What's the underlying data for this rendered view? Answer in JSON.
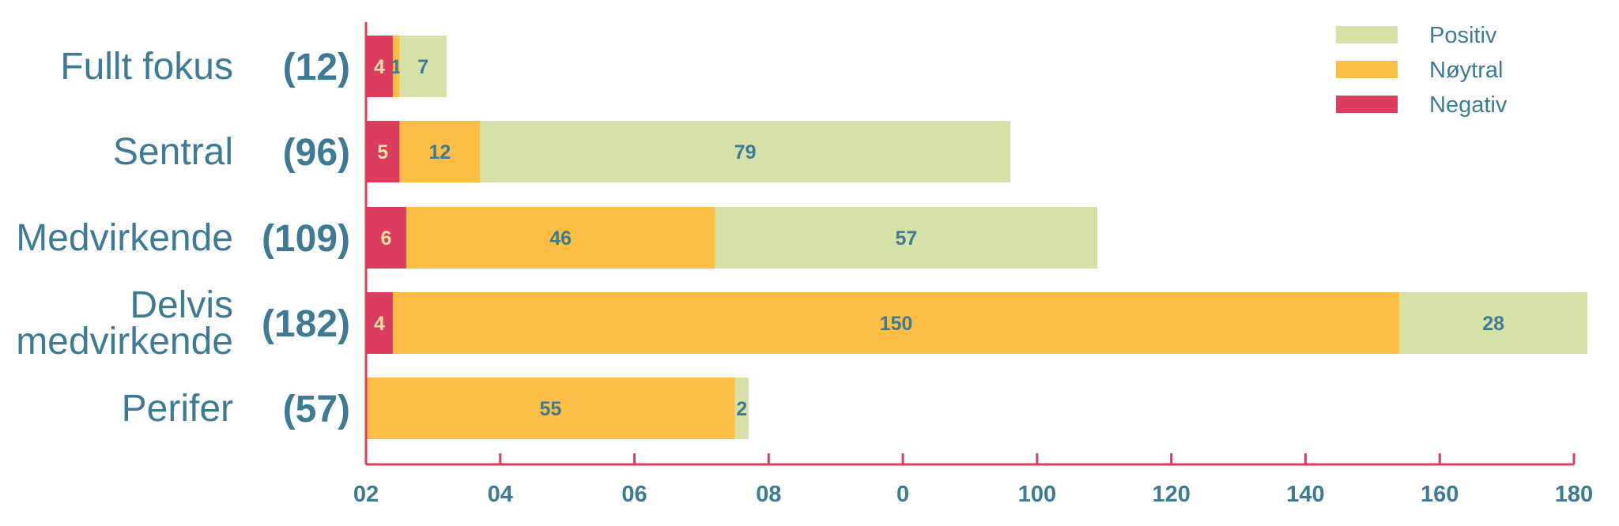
{
  "chart_data": {
    "type": "bar",
    "orientation": "horizontal",
    "stacked": true,
    "title": "",
    "xlabel": "",
    "ylabel": "",
    "xlim": [
      0,
      180
    ],
    "grid": false,
    "legend_position": "top-right",
    "categories": [
      {
        "lines": [
          "Fullt fokus"
        ],
        "count_label": "(12)"
      },
      {
        "lines": [
          "Sentral"
        ],
        "count_label": "(96)"
      },
      {
        "lines": [
          "Medvirkende"
        ],
        "count_label": "(109)"
      },
      {
        "lines": [
          "Delvis",
          "medvirkende"
        ],
        "count_label": "(182)"
      },
      {
        "lines": [
          "Perifer"
        ],
        "count_label": "(57)"
      }
    ],
    "series": [
      {
        "name": "Negativ",
        "color": "#dc3d5e",
        "label_color": "#f3e5a6",
        "values": [
          4,
          5,
          6,
          4,
          0
        ]
      },
      {
        "name": "Nøytral",
        "color": "#fcbe44",
        "label_color": "#3d7a93",
        "values": [
          1,
          12,
          46,
          150,
          55
        ]
      },
      {
        "name": "Positiv",
        "color": "#d6e1a8",
        "label_color": "#3d7a93",
        "values": [
          7,
          79,
          57,
          28,
          2
        ]
      }
    ],
    "bar_value_labels": [
      [
        "4",
        "5",
        "6",
        "4",
        ""
      ],
      [
        "1",
        "12",
        "46",
        "150",
        "55"
      ],
      [
        "7",
        "79",
        "57",
        "28",
        "2"
      ]
    ],
    "tick_labels": [
      "02",
      "04",
      "06",
      "08",
      "0",
      "100",
      "120",
      "140",
      "160",
      "180"
    ],
    "legend_order": [
      "Positiv",
      "Nøytral",
      "Negativ"
    ],
    "axis_color": "#dc3d5e",
    "text_color": "#3d7a93"
  }
}
